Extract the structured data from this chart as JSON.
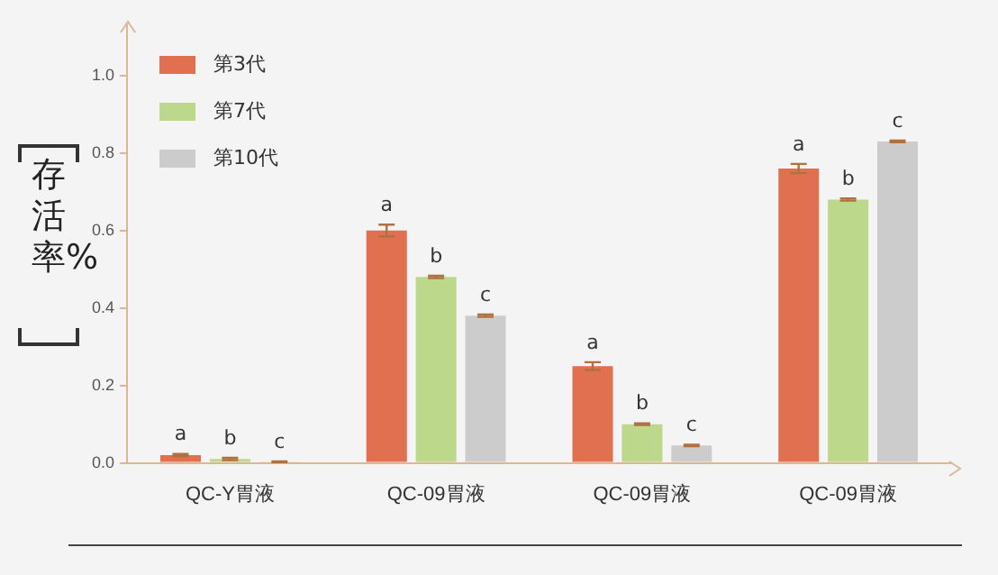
{
  "chart_data": {
    "type": "bar",
    "ylabel": "存活率%",
    "categories": [
      "QC-Y胃液",
      "QC-09胃液",
      "QC-09胃液",
      "QC-09胃液"
    ],
    "series": [
      {
        "name": "第3代",
        "color": "#e07050",
        "values": [
          0.02,
          0.6,
          0.25,
          0.76
        ],
        "errors": [
          0.003,
          0.015,
          0.01,
          0.012
        ],
        "value_labels": [
          "a",
          "a",
          "a",
          "a"
        ]
      },
      {
        "name": "第7代",
        "color": "#bcd88a",
        "values": [
          0.01,
          0.48,
          0.1,
          0.68
        ],
        "errors": [
          0.003,
          0.003,
          0.002,
          0.003
        ],
        "value_labels": [
          "b",
          "b",
          "b",
          "b"
        ]
      },
      {
        "name": "第10代",
        "color": "#cccccc",
        "values": [
          0.003,
          0.38,
          0.045,
          0.83
        ],
        "errors": [
          0.001,
          0.003,
          0.002,
          0.002
        ],
        "value_labels": [
          "c",
          "c",
          "c",
          "c"
        ]
      }
    ],
    "ylim": [
      0,
      1.13
    ],
    "yticks": [
      {
        "value": 0,
        "label": "0.0"
      },
      {
        "value": 0.2,
        "label": "0.2"
      },
      {
        "value": 0.4,
        "label": "0.4"
      },
      {
        "value": 0.6,
        "label": "0.6"
      },
      {
        "value": 0.8,
        "label": "0.8"
      },
      {
        "value": 1,
        "label": "1.0"
      }
    ],
    "grid": false,
    "legend": "top left"
  }
}
